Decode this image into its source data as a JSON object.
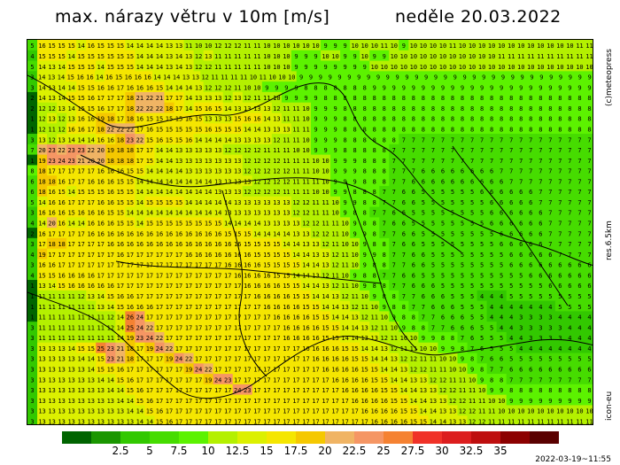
{
  "title": "max. nárazy větru v 10m [m/s]",
  "date": "neděle 20.03.2022",
  "credit": "(c)meteopress",
  "resolution": "res.6.5km",
  "model": "icon-eu",
  "timestamp": "2022-03-19~11:55",
  "legend": {
    "colors": [
      "#006400",
      "#1a9600",
      "#32c800",
      "#46dc00",
      "#5cf200",
      "#b4f000",
      "#dcf000",
      "#f5e600",
      "#f5c800",
      "#f0b464",
      "#f59664",
      "#f58232",
      "#f03228",
      "#dc1e1e",
      "#be0f0f",
      "#8c0000",
      "#5a0000"
    ],
    "labels": [
      "2.5",
      "5",
      "7.5",
      "10",
      "12.5",
      "15",
      "17.5",
      "20",
      "22.5",
      "25",
      "27.5",
      "30",
      "32.5",
      "35"
    ]
  },
  "map": {
    "grid_rows": [
      "5 16 15 15 15 14 16 15 15 15 14 14 14 14 13 13 11 10 10 12 12 12 11 11 10 10 10 10 10 10 9 9 9 10 10 10 11 10 9 10 10 10 10 11 10 10 10 10 10 10 10 10 10 10 10 10 11 11",
      "4 15 15 15 14 15 15 15 15 15 15 14 14 14 13 14 13 12 13 11 11 11 11 11 10 10 10 9 9 9 10 10 9 9 10 9 9 10 10 10 10 10 10 10 10 10 10 10 11 11 11 11 11 11 11 11 11 11",
      "5 14 13 14 15 15 15 14 15 15 15 14 14 14 13 14 13 12 12 11 11 11 11 11 10 10 10 9 9 9 9 9 9 9 9 10 10 10 10 10 10 10 10 10 10 10 10 10 10 10 10 10 10 10 10 10 10 10",
      "3 14 13 14 15 16 16 14 16 15 16 16 16 14 14 14 13 13 12 11 11 11 11 10 11 10 10 10 9 9 9 9 9 9 9 9 9 9 9 9 9 9 9 9 9 9 9 9 9 9 9 9 9 9 9 9 9 9 9",
      "3 14 13 14 14 15 15 16 16 17 16 16 16 15 14 14 14 13 12 12 12 11 10 10 9 9 9 9 8 8 8 8 8 8 8 9 9 9 9 9 9 9 9 9 9 9 9 9 9 9 9 9 9 9 9 9 9 9",
      "2 14 13 14 15 15 16 17 17 17 18 21 22 21 17 17 14 13 13 13 12 13 12 11 11 10 9 9 9 9 8 8 8 8 8 8 8 8 8 8 8 8 8 8 8 8 8 8 8 8 8 8 8 8 8 8 8 8",
      "2 12 12 13 14 15 15 16 17 17 18 22 22 22 18 17 14 15 16 15 14 13 13 13 13 12 11 11 10 9 9 9 8 8 8 8 8 8 8 8 8 8 8 8 8 8 8 8 8 8 8 8 8 8 8 8 8 8",
      "1 12 13 12 13 16 16 19 18 17 18 16 15 15 15 15 16 15 13 13 13 15 16 16 14 13 11 11 10 9 9 9 8 8 8 8 8 8 8 8 8 8 8 8 8 8 8 8 8 8 8 8 8 8 8 8 8 8",
      "1 12 11 12 16 16 17 18 22 22 22 17 16 15 15 15 15 15 16 15 15 15 14 14 13 13 13 11 11 9 9 9 8 8 8 8 8 8 8 8 8 8 8 8 8 8 8 8 8 8 8 8 8 8 8 8 8 8",
      "3 13 12 13 14 14 14 16 16 18 23 22 15 16 15 15 16 14 14 14 14 13 13 13 13 12 11 11 10 9 9 9 8 8 8 8 8 8 7 7 7 7 7 7 7 7 7 7 7 7 7 7 7 7 7 7 7 7",
      "7 20 23 22 23 23 22 20 19 18 18 17 17 14 14 13 13 13 13 13 12 12 12 12 11 11 11 10 10 9 9 9 8 8 8 8 8 7 7 7 7 7 7 7 7 7 7 7 7 7 7 7 7 7 7 7 7 7",
      "1 19 23 24 23 21 20 20 18 18 18 17 15 14 14 13 13 13 13 13 13 13 12 12 12 12 11 11 11 10 10 9 9 9 8 8 8 7 7 7 7 7 7 7 7 7 7 7 7 7 7 7 7 7 7 7 7 7",
      "8 18 17 17 17 17 17 16 16 16 15 15 14 14 14 14 13 13 13 13 13 13 12 12 12 12 12 11 11 10 10 9 9 9 8 8 8 7 7 7 6 6 6 6 6 6 6 6 7 7 7 7 7 7 7 7 7 7",
      "6 18 18 16 17 17 16 16 16 15 15 14 14 14 14 14 14 14 14 13 13 13 13 12 12 12 12 11 11 11 10 9 9 9 8 8 8 7 7 6 6 6 6 6 6 6 6 6 6 7 7 7 7 7 7 7 7 7",
      "6 18 16 15 14 15 15 15 16 15 15 14 14 14 14 14 14 14 14 13 13 13 12 12 12 12 11 11 11 10 10 9 9 8 8 8 7 7 6 6 5 5 5 5 5 5 6 6 6 6 6 6 7 7 7 7 7 7",
      "5 14 16 16 17 17 17 16 16 15 15 14 15 15 15 15 14 14 14 14 14 13 13 13 13 13 13 12 12 11 11 10 9 9 8 8 7 7 6 6 5 5 5 5 5 5 5 6 6 6 6 6 7 7 7 7 7 7",
      "3 16 16 16 15 16 16 16 15 15 14 14 14 14 14 14 14 14 14 14 13 13 13 13 13 13 13 12 12 11 11 10 9 8 8 7 7 6 6 5 5 5 5 5 5 5 5 6 6 6 6 6 6 7 7 7 7 7",
      "4 14 20 16 14 14 16 16 16 15 15 14 15 15 15 15 15 15 15 15 14 14 14 14 13 13 13 13 12 12 11 11 10 9 8 8 7 6 6 5 5 5 5 5 5 5 5 6 6 6 6 6 6 7 7 7 7 7",
      "2 16 17 17 17 17 16 16 16 16 16 16 16 16 16 16 16 16 16 16 15 15 15 14 14 14 14 13 13 12 12 11 10 9 9 8 7 7 6 6 5 5 5 5 5 5 5 5 6 6 6 6 6 7 7 7 7 7",
      "3 17 18 18 17 17 17 17 16 16 16 16 16 16 16 16 16 16 16 16 16 16 15 15 15 15 14 14 13 13 12 11 10 10 9 8 8 7 6 6 5 5 5 5 5 5 5 5 6 6 6 6 6 7 7 7 7 7",
      "4 19 17 17 17 17 17 17 17 16 17 17 17 17 17 17 16 16 16 16 16 16 16 15 15 15 15 14 14 13 13 12 11 10 9 9 8 7 7 6 6 5 5 5 5 5 5 5 5 6 6 6 6 6 7 7 7 7",
      "3 16 16 17 17 17 17 17 17 17 17 17 17 17 17 17 17 17 17 17 16 16 16 16 15 15 15 15 14 14 13 12 11 10 9 8 8 7 7 6 6 5 5 5 5 5 5 5 5 6 6 6 6 6 6 6 6 6",
      "4 15 15 16 16 16 16 17 17 17 17 17 17 17 17 17 17 17 17 17 17 16 16 16 16 15 15 14 14 13 12 11 10 9 8 8 7 7 6 6 5 5 5 5 5 5 5 5 5 5 5 6 6 6 6 6 6 6",
      "1 13 14 15 16 16 16 16 16 17 17 17 17 17 17 17 17 17 17 17 17 17 16 16 16 16 15 15 14 14 13 12 11 10 9 8 8 7 7 6 6 6 5 5 5 5 5 5 5 5 5 5 5 6 6 6 6 6",
      "1 11 11 11 11 12 13 14 15 16 16 17 17 17 17 17 17 17 17 17 17 17 17 16 16 16 16 15 15 14 14 13 12 11 10 9 8 8 7 7 6 6 6 5 5 5 4 4 4 5 5 5 5 5 5 5 5 5",
      "1 11 11 11 11 11 11 13 14 15 16 16 16 17 17 17 17 17 17 17 17 17 17 17 16 16 16 16 15 15 14 14 13 12 11 10 9 8 8 7 7 6 6 6 5 5 5 4 4 4 4 4 4 4 5 5 5 5",
      "1 11 11 11 11 11 11 11 12 14 26 24 17 17 17 17 17 17 17 17 17 17 17 17 17 16 16 16 16 15 15 14 14 13 12 11 10 9 8 8 7 7 6 6 6 5 5 4 4 4 3 3 3 3 4 4 4 4",
      "3 11 11 11 11 11 11 11 12 14 25 24 22 17 17 17 17 17 17 17 17 17 17 17 17 17 16 16 16 16 15 15 14 14 13 12 11 10 9 8 8 7 7 6 6 6 5 5 4 4 3 3 3 3 3 4 4 4",
      "3 11 11 11 11 11 11 11 11 14 19 23 24 22 17 17 17 17 17 17 17 17 17 17 17 17 16 16 16 16 15 15 14 14 13 13 12 11 10 10 9 9 8 8 7 6 5 5 5 4 4 3 3 3 3 4 4 4",
      "3 13 13 13 14 15 15 25 23 21 18 17 19 24 22 17 17 17 17 17 17 17 17 17 17 17 17 17 16 16 16 16 15 15 14 14 13 12 11 11 10 10 9 9 8 7 6 5 5 5 4 4 4 4 4 4 4 4",
      "3 13 13 13 13 14 14 15 23 21 18 17 17 17 19 24 22 17 17 17 17 17 17 17 17 17 17 17 17 16 16 16 16 15 15 14 14 13 12 12 11 11 10 10 9 8 7 6 6 5 5 5 5 5 5 5 5 5",
      "3 13 13 13 13 13 14 15 15 16 17 17 17 17 17 17 19 24 22 17 17 17 17 17 17 17 17 17 17 17 16 16 16 16 15 15 14 14 13 12 12 11 11 10 10 9 8 7 7 6 6 6 6 6 6 6 6 6",
      "3 13 13 13 13 13 13 14 14 15 16 17 17 17 17 17 17 17 19 24 23 17 17 17 17 17 17 17 17 17 17 16 16 16 16 15 15 14 14 13 13 12 12 11 11 10 9 8 8 7 7 7 7 7 7 7 7 7",
      "3 13 13 13 13 13 13 13 14 14 15 16 17 17 17 17 17 17 17 17 17 24 23 17 17 17 17 17 17 17 17 17 16 16 16 16 15 15 14 14 13 13 12 12 11 11 10 9 9 8 8 8 8 8 8 8 8 8",
      "3 13 13 13 13 13 13 13 13 14 14 15 16 17 17 17 17 17 17 17 17 17 17 17 17 17 17 17 17 17 17 17 17 16 16 16 16 15 15 14 14 13 13 12 12 11 11 10 10 9 9 9 9 9 9 9 9 9",
      "3 13 13 13 13 13 13 13 13 13 14 14 15 16 17 17 17 17 17 17 17 17 17 17 17 17 17 17 17 17 17 17 17 17 16 16 16 16 15 15 14 14 13 13 12 12 11 11 10 10 10 10 10 10 10 10 10 10",
      "3 13 13 13 13 13 13 13 13 13 13 14 14 15 16 17 17 17 17 17 17 17 17 17 17 17 17 17 17 17 17 17 17 17 17 16 16 16 16 15 15 14 14 13 13 12 12 11 11 11 11 11 11 11 11 11 11 11"
    ]
  }
}
